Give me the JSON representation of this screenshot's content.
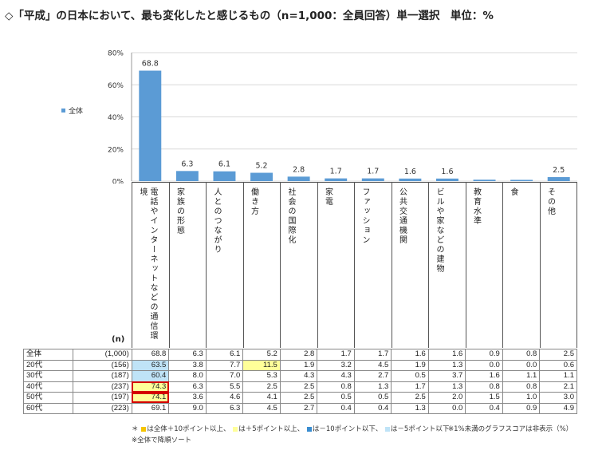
{
  "title": "◇「平成」の日本において、最も変化したと感じるもの（n=1,000：全員回答）単一選択　単位：%",
  "legend": {
    "label": "全体",
    "color": "#5b9bd5"
  },
  "n_label": "(n)",
  "chart_data": {
    "type": "bar",
    "categories": [
      "電話やインターネットなどの通信環境",
      "家族の形態",
      "人とのつながり",
      "働き方",
      "社会の国際化",
      "家電",
      "ファッション",
      "公共交通機関",
      "ビルや家などの建物",
      "教育水準",
      "食",
      "その他"
    ],
    "series": [
      {
        "name": "全体",
        "values": [
          68.8,
          6.3,
          6.1,
          5.2,
          2.8,
          1.7,
          1.7,
          1.6,
          1.6,
          0.9,
          0.8,
          2.5
        ]
      }
    ],
    "value_labels": [
      "68.8",
      "6.3",
      "6.1",
      "5.2",
      "2.8",
      "1.7",
      "1.7",
      "1.6",
      "1.6",
      "",
      "",
      "2.5"
    ],
    "ylim": [
      0,
      80
    ],
    "yticks": [
      "0%",
      "20%",
      "40%",
      "60%",
      "80%"
    ],
    "legend_position": "left",
    "bar_color": "#5b9bd5"
  },
  "table": {
    "rows": [
      {
        "group": "全体",
        "n": "(1,000)",
        "values": [
          "68.8",
          "6.3",
          "6.1",
          "5.2",
          "2.8",
          "1.7",
          "1.7",
          "1.6",
          "1.6",
          "0.9",
          "0.8",
          "2.5"
        ]
      },
      {
        "group": "20代",
        "n": "(156)",
        "values": [
          "63.5",
          "3.8",
          "7.7",
          "11.5",
          "1.9",
          "3.2",
          "4.5",
          "1.9",
          "1.3",
          "0.0",
          "0.0",
          "0.6"
        ]
      },
      {
        "group": "30代",
        "n": "(187)",
        "values": [
          "60.4",
          "8.0",
          "7.0",
          "5.3",
          "4.3",
          "4.3",
          "2.7",
          "0.5",
          "3.7",
          "1.6",
          "1.1",
          "1.1"
        ]
      },
      {
        "group": "40代",
        "n": "(237)",
        "values": [
          "74.3",
          "6.3",
          "5.5",
          "2.5",
          "2.5",
          "0.8",
          "1.3",
          "1.7",
          "1.3",
          "0.8",
          "0.8",
          "2.1"
        ]
      },
      {
        "group": "50代",
        "n": "(197)",
        "values": [
          "74.1",
          "3.6",
          "4.6",
          "4.1",
          "2.5",
          "0.5",
          "0.5",
          "2.5",
          "2.0",
          "1.5",
          "1.0",
          "3.0"
        ]
      },
      {
        "group": "60代",
        "n": "(223)",
        "values": [
          "69.1",
          "9.0",
          "6.3",
          "4.5",
          "2.7",
          "0.4",
          "0.4",
          "1.3",
          "0.0",
          "0.4",
          "0.9",
          "4.9"
        ]
      }
    ],
    "highlights": {
      "yellow": [
        [
          1,
          3
        ],
        [
          3,
          0
        ],
        [
          4,
          0
        ]
      ],
      "blue": [
        [
          1,
          0
        ],
        [
          2,
          0
        ]
      ],
      "red_box": [
        [
          3,
          0
        ],
        [
          4,
          0
        ]
      ]
    },
    "colors": {
      "yellow": "#ffff99",
      "blue": "#bfe3f7",
      "red": "#d40000",
      "strong_yellow": "#f5c400",
      "strong_blue": "#3a8dd0"
    }
  },
  "footnotes": {
    "f1_a": "＊",
    "f1_b": "は全体＋10ポイント以上、",
    "f1_c": "は＋5ポイント以上、",
    "f1_d": "は－10ポイント以下、",
    "f1_e": "は－5ポイント以下",
    "f2": "※1%未満のグラフスコアは非表示（%）",
    "f3": "※全体で降順ソート"
  }
}
